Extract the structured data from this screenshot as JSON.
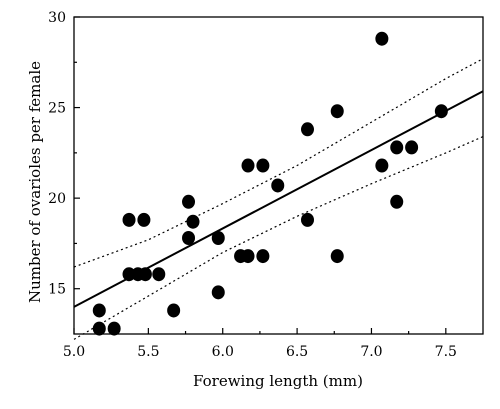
{
  "chart_data": {
    "type": "scatter",
    "xlabel": "Forewing length (mm)",
    "ylabel": "Number of ovarioles per female",
    "xlim": [
      5.0,
      7.75
    ],
    "ylim": [
      12.5,
      30
    ],
    "x_ticks": [
      5.0,
      5.5,
      6.0,
      6.5,
      7.0,
      7.5
    ],
    "x_tick_labels": [
      "5.0",
      "5.5",
      "6.0",
      "6.5",
      "7.0",
      "7.5"
    ],
    "y_ticks": [
      15,
      20,
      25,
      30
    ],
    "y_tick_labels": [
      "15",
      "20",
      "25",
      "30"
    ],
    "grid": false,
    "series": [
      {
        "points": [
          {
            "x": 5.17,
            "y": 13.8
          },
          {
            "x": 5.17,
            "y": 12.8
          },
          {
            "x": 5.27,
            "y": 12.8
          },
          {
            "x": 5.37,
            "y": 18.8
          },
          {
            "x": 5.37,
            "y": 15.8
          },
          {
            "x": 5.43,
            "y": 15.8
          },
          {
            "x": 5.47,
            "y": 18.8
          },
          {
            "x": 5.48,
            "y": 15.8
          },
          {
            "x": 5.57,
            "y": 15.8
          },
          {
            "x": 5.67,
            "y": 13.8
          },
          {
            "x": 5.77,
            "y": 19.8
          },
          {
            "x": 5.77,
            "y": 17.8
          },
          {
            "x": 5.8,
            "y": 18.7
          },
          {
            "x": 5.97,
            "y": 17.8
          },
          {
            "x": 5.97,
            "y": 14.8
          },
          {
            "x": 6.12,
            "y": 16.8
          },
          {
            "x": 6.17,
            "y": 21.8
          },
          {
            "x": 6.17,
            "y": 16.8
          },
          {
            "x": 6.27,
            "y": 21.8
          },
          {
            "x": 6.27,
            "y": 16.8
          },
          {
            "x": 6.37,
            "y": 20.7
          },
          {
            "x": 6.57,
            "y": 23.8
          },
          {
            "x": 6.57,
            "y": 18.8
          },
          {
            "x": 6.77,
            "y": 24.8
          },
          {
            "x": 6.77,
            "y": 16.8
          },
          {
            "x": 7.07,
            "y": 28.8
          },
          {
            "x": 7.07,
            "y": 21.8
          },
          {
            "x": 7.17,
            "y": 22.8
          },
          {
            "x": 7.17,
            "y": 19.8
          },
          {
            "x": 7.27,
            "y": 22.8
          },
          {
            "x": 7.47,
            "y": 24.8
          }
        ]
      }
    ],
    "regression_line": {
      "x": [
        5.0,
        7.75
      ],
      "y": [
        14.0,
        25.9
      ]
    },
    "confidence_band": {
      "upper": {
        "x": [
          5.0,
          5.5,
          6.0,
          6.5,
          7.0,
          7.5,
          7.75
        ],
        "y": [
          16.2,
          17.7,
          19.7,
          21.8,
          24.2,
          26.6,
          27.7
        ]
      },
      "lower": {
        "x": [
          5.0,
          5.5,
          6.0,
          6.5,
          7.0,
          7.5,
          7.75
        ],
        "y": [
          12.2,
          14.6,
          17.0,
          19.0,
          20.8,
          22.5,
          23.4
        ]
      }
    }
  }
}
